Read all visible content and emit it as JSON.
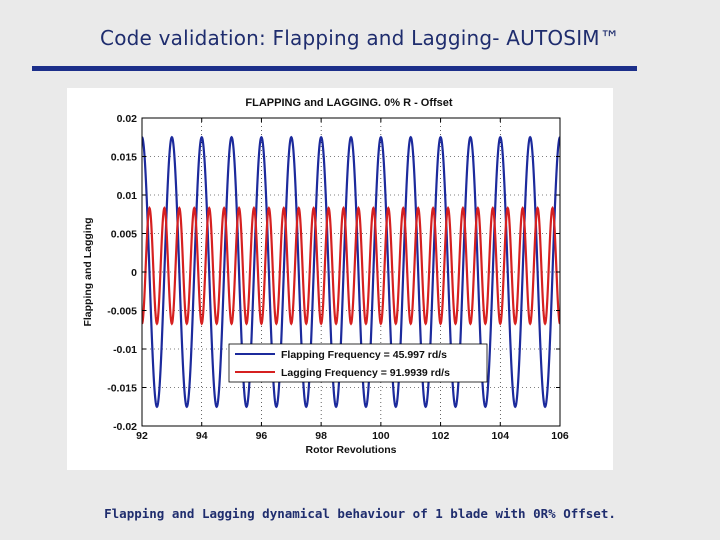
{
  "slide": {
    "title": "Code validation: Flapping and Lagging- AUTOSIM™",
    "caption": "Flapping and Lagging dynamical behaviour of 1 blade with 0R% Offset.",
    "accent_color": "#1c2f8a",
    "background_color": "#eaeaea"
  },
  "chart_data": {
    "type": "line",
    "title": "FLAPPING and LAGGING. 0% R - Offset",
    "xlabel": "Rotor Revolutions",
    "ylabel": "Flapping and Lagging",
    "xlim": [
      92,
      106
    ],
    "ylim": [
      -0.02,
      0.02
    ],
    "xticks": [
      "92",
      "94",
      "96",
      "98",
      "100",
      "102",
      "104",
      "106"
    ],
    "yticks": [
      "0.02",
      "0.015",
      "0.01",
      "0.005",
      "0",
      "-0.005",
      "-0.01",
      "-0.015",
      "-0.02"
    ],
    "grid": true,
    "legend_position": "lower-right",
    "series": [
      {
        "name": "Flapping Frequency = 45.997 rd/s",
        "color": "#1c2a9c",
        "form": "sinusoid",
        "amplitude": 0.0175,
        "offset": 0.0,
        "cycles_per_revolution": 1.0,
        "peak_at_revolution": 92.0
      },
      {
        "name": "Lagging Frequency = 91.9939 rd/s",
        "color": "#d62020",
        "form": "sinusoid",
        "amplitude": 0.0075,
        "offset": 0.0008,
        "cycles_per_revolution": 2.0,
        "peak_at_revolution": 92.25
      }
    ]
  }
}
